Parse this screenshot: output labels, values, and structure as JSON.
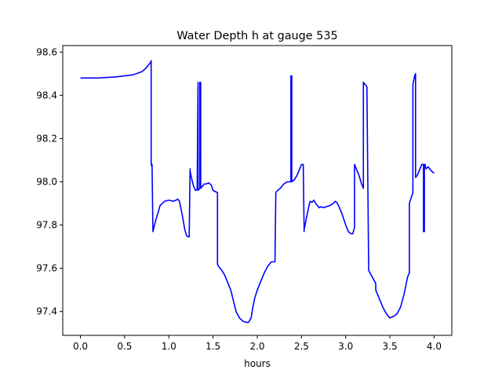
{
  "chart_data": {
    "type": "line",
    "title": "Water Depth h at gauge 535",
    "xlabel": "hours",
    "ylabel": "",
    "xlim": [
      -0.2,
      4.2
    ],
    "ylim": [
      97.29,
      98.63
    ],
    "x_ticks": [
      0.0,
      0.5,
      1.0,
      1.5,
      2.0,
      2.5,
      3.0,
      3.5,
      4.0
    ],
    "x_tick_labels": [
      "0.0",
      "0.5",
      "1.0",
      "1.5",
      "2.0",
      "2.5",
      "3.0",
      "3.5",
      "4.0"
    ],
    "y_ticks": [
      97.4,
      97.6,
      97.8,
      98.0,
      98.2,
      98.4,
      98.6
    ],
    "y_tick_labels": [
      "97.4",
      "97.6",
      "97.8",
      "98.0",
      "98.2",
      "98.4",
      "98.6"
    ],
    "grid": false,
    "series": [
      {
        "color": "#0000ff",
        "x": [
          0.0,
          0.2,
          0.4,
          0.6,
          0.7,
          0.75,
          0.79,
          0.8,
          0.8,
          0.81,
          0.81,
          0.82,
          0.82,
          0.85,
          0.88,
          0.9,
          0.95,
          1.0,
          1.05,
          1.08,
          1.1,
          1.12,
          1.15,
          1.18,
          1.2,
          1.23,
          1.24,
          1.24,
          1.26,
          1.28,
          1.3,
          1.32,
          1.33,
          1.33,
          1.35,
          1.35,
          1.36,
          1.36,
          1.38,
          1.4,
          1.42,
          1.45,
          1.48,
          1.5,
          1.55,
          1.55,
          1.56,
          1.58,
          1.6,
          1.63,
          1.66,
          1.7,
          1.73,
          1.76,
          1.8,
          1.84,
          1.88,
          1.9,
          1.93,
          1.95,
          1.97,
          2.0,
          2.04,
          2.08,
          2.12,
          2.16,
          2.2,
          2.21,
          2.21,
          2.23,
          2.26,
          2.3,
          2.34,
          2.38,
          2.38,
          2.39,
          2.39,
          2.42,
          2.45,
          2.48,
          2.5,
          2.52,
          2.53,
          2.53,
          2.55,
          2.57,
          2.59,
          2.6,
          2.62,
          2.64,
          2.66,
          2.68,
          2.7,
          2.72,
          2.75,
          2.78,
          2.82,
          2.86,
          2.88,
          2.9,
          2.93,
          2.96,
          3.0,
          3.03,
          3.06,
          3.08,
          3.1,
          3.1,
          3.12,
          3.15,
          3.18,
          3.2,
          3.2,
          3.22,
          3.24,
          3.24,
          3.26,
          3.3,
          3.34,
          3.34,
          3.38,
          3.42,
          3.46,
          3.48,
          3.5,
          3.52,
          3.55,
          3.58,
          3.62,
          3.66,
          3.7,
          3.72,
          3.72,
          3.76,
          3.76,
          3.78,
          3.79,
          3.79,
          3.81,
          3.84,
          3.86,
          3.87,
          3.88,
          3.88,
          3.89,
          3.89,
          3.9,
          3.9,
          3.91,
          3.93,
          3.95,
          3.97,
          4.0
        ],
        "y": [
          98.48,
          98.48,
          98.485,
          98.495,
          98.51,
          98.53,
          98.55,
          98.56,
          98.08,
          98.07,
          98.08,
          97.77,
          97.77,
          97.82,
          97.86,
          97.89,
          97.91,
          97.915,
          97.91,
          97.915,
          97.92,
          97.91,
          97.85,
          97.78,
          97.75,
          97.745,
          98.06,
          98.05,
          98.01,
          97.98,
          97.96,
          97.965,
          98.46,
          97.96,
          97.97,
          98.46,
          98.46,
          97.97,
          97.98,
          97.99,
          97.99,
          97.995,
          97.985,
          97.96,
          97.95,
          97.62,
          97.61,
          97.6,
          97.59,
          97.57,
          97.54,
          97.5,
          97.45,
          97.4,
          97.37,
          97.355,
          97.35,
          97.35,
          97.37,
          97.42,
          97.46,
          97.5,
          97.54,
          97.58,
          97.61,
          97.63,
          97.63,
          97.95,
          97.95,
          97.96,
          97.97,
          97.99,
          98.0,
          98.0,
          98.49,
          98.49,
          98.0,
          98.01,
          98.03,
          98.06,
          98.08,
          98.08,
          97.77,
          97.78,
          97.82,
          97.86,
          97.9,
          97.91,
          97.905,
          97.915,
          97.9,
          97.89,
          97.88,
          97.885,
          97.88,
          97.885,
          97.89,
          97.9,
          97.91,
          97.905,
          97.88,
          97.85,
          97.8,
          97.77,
          97.76,
          97.76,
          97.79,
          98.08,
          98.06,
          98.03,
          97.99,
          97.97,
          98.46,
          98.45,
          98.44,
          98.43,
          97.59,
          97.56,
          97.53,
          97.5,
          97.46,
          97.42,
          97.39,
          97.38,
          97.37,
          97.375,
          97.38,
          97.39,
          97.42,
          97.48,
          97.56,
          97.58,
          97.9,
          97.95,
          98.45,
          98.49,
          98.5,
          98.02,
          98.03,
          98.06,
          98.08,
          98.08,
          98.08,
          97.77,
          97.77,
          98.08,
          98.08,
          98.07,
          98.06,
          98.07,
          98.06,
          98.05,
          98.04
        ]
      }
    ]
  }
}
